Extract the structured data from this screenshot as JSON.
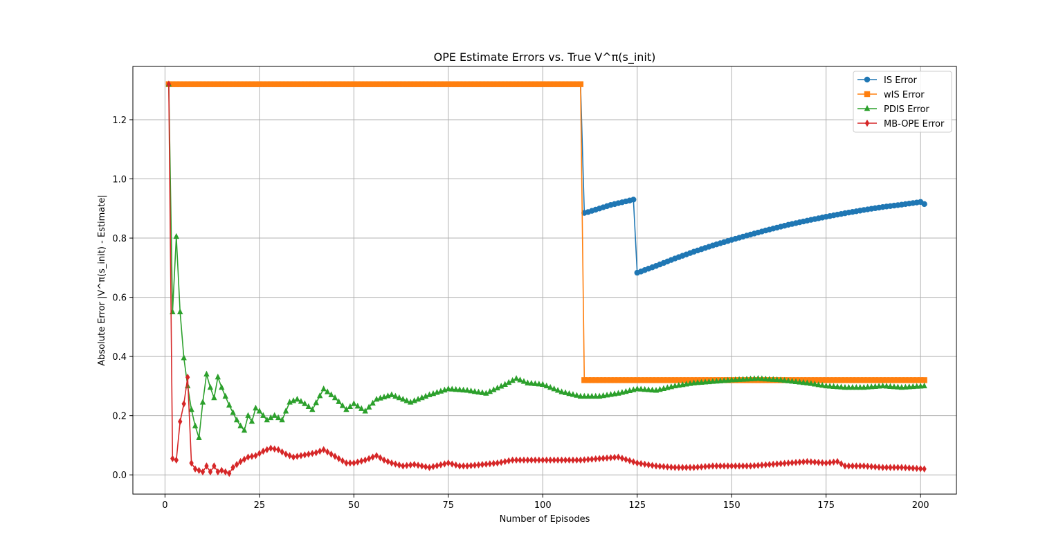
{
  "chart_data": {
    "type": "line",
    "title": "OPE Estimate Errors vs. True V^π(s_init)",
    "xlabel": "Number of Episodes",
    "ylabel": "Absolute Error |V^π(s_init) - Estimate|",
    "xlim": [
      -8.5,
      209.5
    ],
    "ylim": [
      -0.065,
      1.38
    ],
    "xticks": [
      0,
      25,
      50,
      75,
      100,
      125,
      150,
      175,
      200
    ],
    "yticks": [
      0.0,
      0.2,
      0.4,
      0.6,
      0.8,
      1.0,
      1.2
    ],
    "ytick_labels": [
      "0.0",
      "0.2",
      "0.4",
      "0.6",
      "0.8",
      "1.0",
      "1.2"
    ],
    "grid": true,
    "legend_position": "top-right",
    "series": [
      {
        "name": "IS Error",
        "color": "#1f77b4",
        "marker": "circle",
        "x": [
          1,
          110,
          111,
          112,
          113,
          114,
          115,
          116,
          117,
          118,
          119,
          120,
          121,
          122,
          123,
          124,
          125,
          126,
          127,
          130,
          135,
          140,
          145,
          150,
          155,
          160,
          165,
          170,
          175,
          180,
          185,
          190,
          195,
          200,
          201
        ],
        "y": [
          1.32,
          1.32,
          0.885,
          0.888,
          0.892,
          0.896,
          0.9,
          0.904,
          0.908,
          0.912,
          0.915,
          0.918,
          0.921,
          0.924,
          0.927,
          0.93,
          0.683,
          0.687,
          0.692,
          0.706,
          0.731,
          0.754,
          0.775,
          0.794,
          0.812,
          0.829,
          0.845,
          0.859,
          0.872,
          0.884,
          0.895,
          0.905,
          0.913,
          0.922,
          0.915
        ]
      },
      {
        "name": "wIS Error",
        "color": "#ff7f0e",
        "marker": "square",
        "x": [
          1,
          110,
          111,
          201
        ],
        "y": [
          1.32,
          1.32,
          0.32,
          0.32
        ]
      },
      {
        "name": "PDIS Error",
        "color": "#2ca02c",
        "marker": "triangle",
        "x": [
          1,
          2,
          3,
          4,
          5,
          6,
          7,
          8,
          9,
          10,
          11,
          12,
          13,
          14,
          15,
          16,
          17,
          18,
          19,
          20,
          21,
          22,
          23,
          24,
          25,
          27,
          29,
          31,
          33,
          35,
          37,
          39,
          42,
          45,
          48,
          50,
          53,
          56,
          60,
          65,
          70,
          75,
          80,
          85,
          90,
          93,
          96,
          100,
          105,
          110,
          115,
          120,
          125,
          130,
          135,
          140,
          145,
          150,
          157,
          163,
          170,
          175,
          180,
          185,
          190,
          195,
          201
        ],
        "y": [
          1.32,
          0.55,
          0.805,
          0.55,
          0.395,
          0.3,
          0.22,
          0.165,
          0.125,
          0.245,
          0.34,
          0.295,
          0.26,
          0.33,
          0.295,
          0.265,
          0.235,
          0.21,
          0.185,
          0.165,
          0.15,
          0.2,
          0.18,
          0.225,
          0.215,
          0.185,
          0.2,
          0.185,
          0.245,
          0.255,
          0.24,
          0.22,
          0.29,
          0.26,
          0.22,
          0.24,
          0.215,
          0.255,
          0.27,
          0.245,
          0.27,
          0.29,
          0.285,
          0.275,
          0.305,
          0.325,
          0.31,
          0.305,
          0.28,
          0.265,
          0.265,
          0.275,
          0.29,
          0.285,
          0.3,
          0.31,
          0.315,
          0.32,
          0.325,
          0.32,
          0.31,
          0.3,
          0.295,
          0.295,
          0.3,
          0.295,
          0.3
        ]
      },
      {
        "name": "MB-OPE Error",
        "color": "#d62728",
        "marker": "diamond",
        "x": [
          1,
          2,
          3,
          4,
          5,
          6,
          7,
          8,
          9,
          10,
          11,
          12,
          13,
          14,
          15,
          16,
          17,
          18,
          19,
          20,
          22,
          24,
          26,
          28,
          30,
          32,
          34,
          36,
          38,
          40,
          42,
          44,
          46,
          48,
          50,
          53,
          56,
          58,
          60,
          63,
          66,
          70,
          75,
          78,
          80,
          84,
          88,
          92,
          96,
          100,
          105,
          110,
          115,
          120,
          125,
          130,
          135,
          140,
          145,
          150,
          155,
          160,
          165,
          170,
          175,
          178,
          180,
          185,
          190,
          195,
          201
        ],
        "y": [
          1.32,
          0.055,
          0.05,
          0.18,
          0.24,
          0.33,
          0.04,
          0.02,
          0.015,
          0.01,
          0.03,
          0.01,
          0.03,
          0.01,
          0.015,
          0.01,
          0.005,
          0.025,
          0.035,
          0.045,
          0.06,
          0.065,
          0.08,
          0.09,
          0.085,
          0.07,
          0.06,
          0.065,
          0.07,
          0.075,
          0.085,
          0.07,
          0.055,
          0.04,
          0.04,
          0.05,
          0.065,
          0.05,
          0.04,
          0.03,
          0.035,
          0.025,
          0.04,
          0.03,
          0.03,
          0.035,
          0.04,
          0.05,
          0.05,
          0.05,
          0.05,
          0.05,
          0.055,
          0.06,
          0.04,
          0.03,
          0.025,
          0.025,
          0.03,
          0.03,
          0.03,
          0.035,
          0.04,
          0.045,
          0.04,
          0.045,
          0.03,
          0.03,
          0.025,
          0.025,
          0.02
        ]
      }
    ]
  }
}
